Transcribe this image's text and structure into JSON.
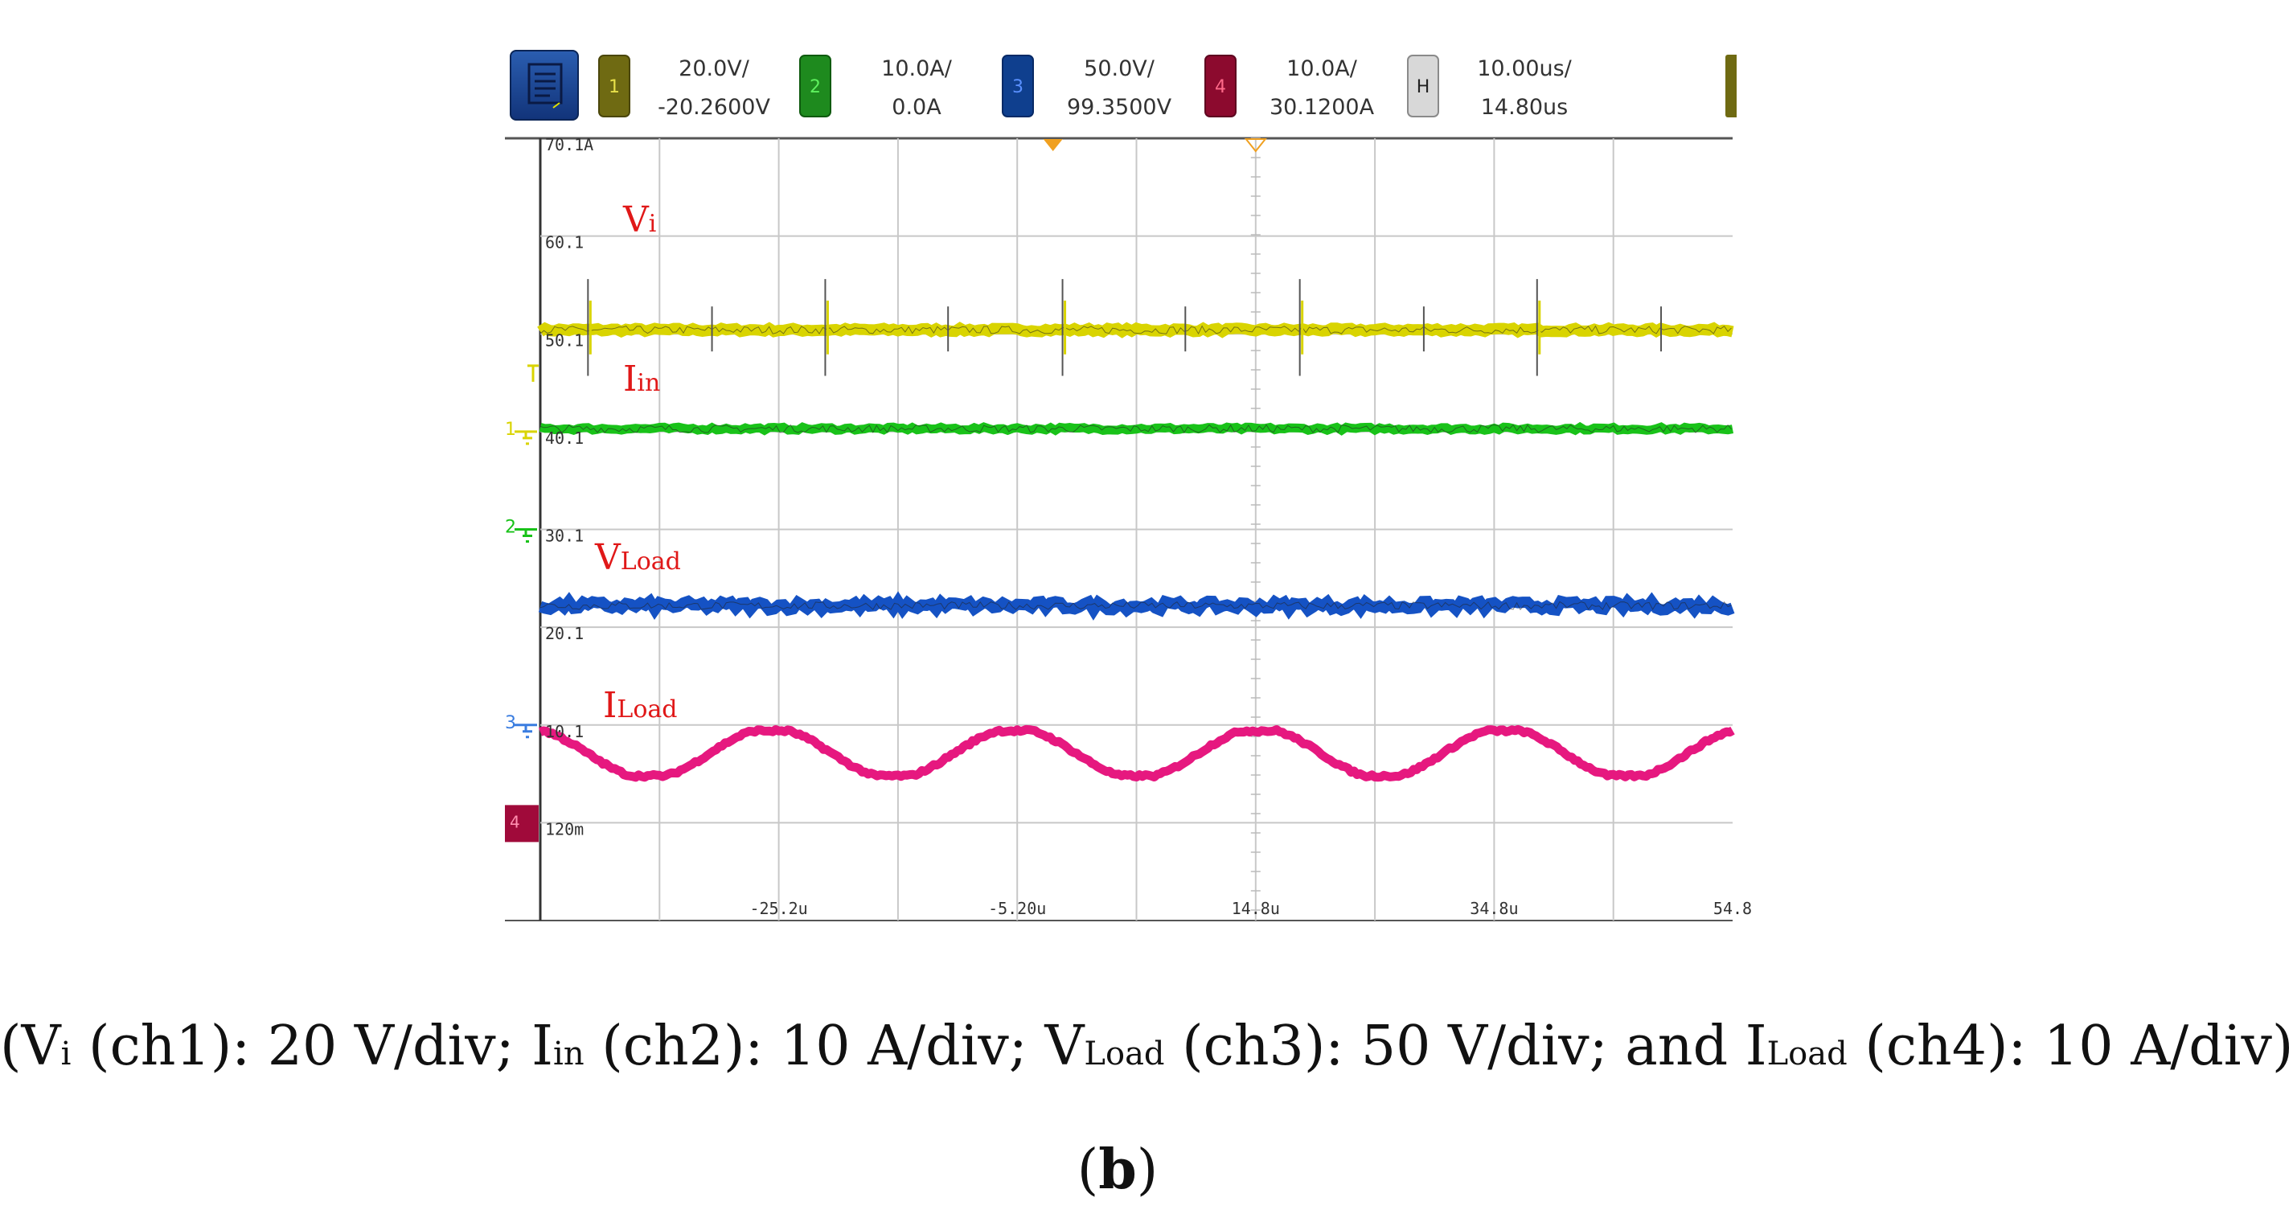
{
  "toolbar": {
    "menu_icon": "menu-icon",
    "channels": [
      {
        "num": "1",
        "scale": "20.0V/",
        "offset": "-20.2600V",
        "color": "#d6d200"
      },
      {
        "num": "2",
        "scale": "10.0A/",
        "offset": "0.0A",
        "color": "#16c716"
      },
      {
        "num": "3",
        "scale": "50.0V/",
        "offset": "99.3500V",
        "color": "#1a56c8"
      },
      {
        "num": "4",
        "scale": "10.0A/",
        "offset": "30.1200A",
        "color": "#c00048"
      }
    ],
    "horizontal": {
      "label": "H",
      "scale": "10.00us/",
      "offset": "14.80us"
    }
  },
  "chart_data": {
    "type": "line",
    "title": "",
    "x_unit": "us",
    "xlim": [
      -45.2,
      54.8
    ],
    "x_tick_labels": [
      "-25.2u",
      "-5.20u",
      "14.8u",
      "34.8u",
      "54.8"
    ],
    "ylim": [
      -9.9,
      70.1
    ],
    "y_tick_labels": [
      "70.1A",
      "60.1",
      "50.1",
      "40.1",
      "30.1",
      "20.1",
      "10.1",
      "120m"
    ],
    "grid": true,
    "series": [
      {
        "name": "Vi",
        "sub": "i",
        "main": "V",
        "channel": "ch1",
        "color": "#d9d400",
        "level": 50.5,
        "shape": "spiky-flat"
      },
      {
        "name": "Iin",
        "sub": "in",
        "main": "I",
        "channel": "ch2",
        "color": "#19c219",
        "level": 40.4,
        "shape": "flat"
      },
      {
        "name": "VLoad",
        "sub": "Load",
        "main": "V",
        "channel": "ch3",
        "color": "#1552c4",
        "level": 22.3,
        "shape": "noisy-flat"
      },
      {
        "name": "ILoad",
        "sub": "Load",
        "main": "I",
        "channel": "ch4",
        "color": "#e6187f",
        "mean": 7.2,
        "amplitude": 2.3,
        "period_us": 20.5,
        "shape": "sine"
      }
    ],
    "ground_markers": [
      "1",
      "2",
      "3",
      "4"
    ]
  },
  "caption": {
    "p0": "(V",
    "s0": "i",
    "p1": " (ch1): 20 V/div; I",
    "s1": "in",
    "p2": " (ch2): 10 A/div; V",
    "s2": "Load",
    "p3": " (ch3): 50 V/div; and I",
    "s3": "Load",
    "p4": " (ch4): 10 A/div)"
  },
  "sublabel": {
    "open": "(",
    "letter": "b",
    "close": ")"
  }
}
